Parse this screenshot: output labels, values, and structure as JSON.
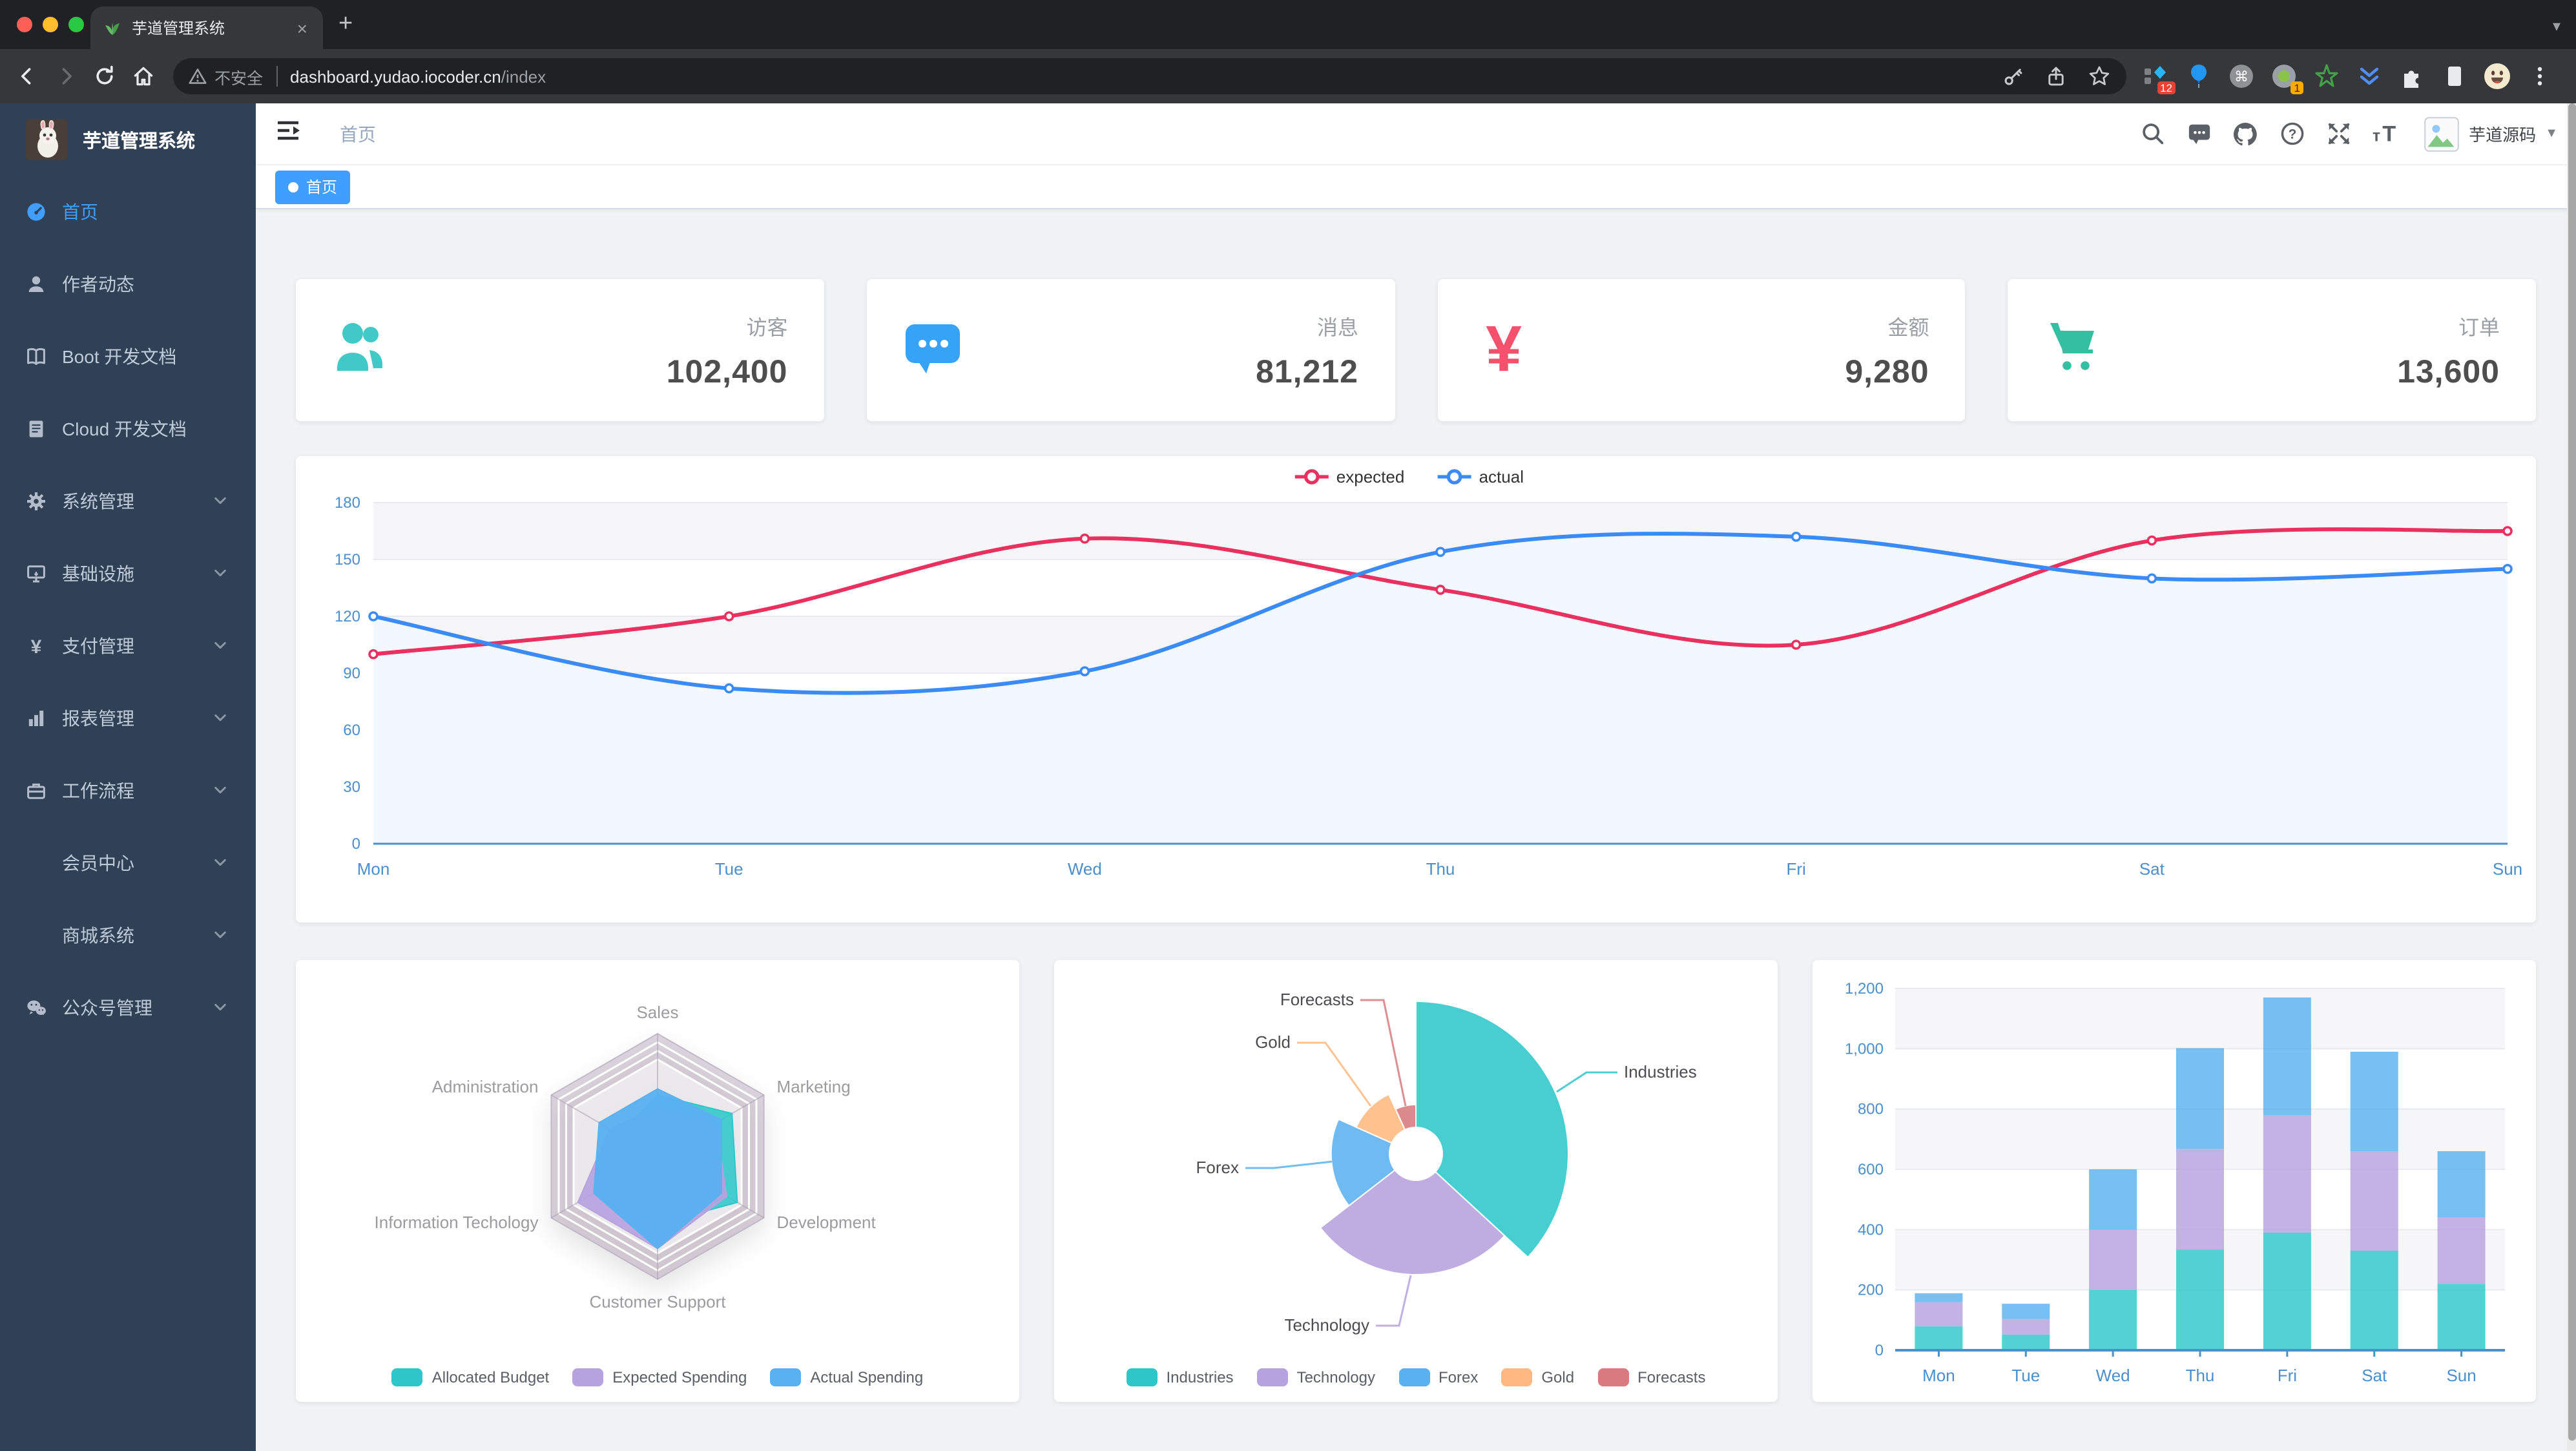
{
  "browser": {
    "traffic_lights": [
      "#ff5f57",
      "#febc2e",
      "#28c840"
    ],
    "tab": {
      "title": "芋道管理系统",
      "close_label": "×"
    },
    "new_tab_label": "+",
    "address": {
      "warning_label": "不安全",
      "host": "dashboard.yudao.iocoder.cn",
      "path": "/index"
    },
    "extension_badges": {
      "first": "12",
      "second": "1"
    }
  },
  "sidebar": {
    "logo_title": "芋道管理系统",
    "items": [
      {
        "label": "首页",
        "icon": "dashboard",
        "active": true,
        "expandable": false
      },
      {
        "label": "作者动态",
        "icon": "person",
        "expandable": false
      },
      {
        "label": "Boot 开发文档",
        "icon": "book",
        "expandable": false
      },
      {
        "label": "Cloud 开发文档",
        "icon": "doc",
        "expandable": false
      },
      {
        "label": "系统管理",
        "icon": "gear",
        "expandable": true
      },
      {
        "label": "基础设施",
        "icon": "monitor",
        "expandable": true
      },
      {
        "label": "支付管理",
        "icon": "yen",
        "expandable": true
      },
      {
        "label": "报表管理",
        "icon": "chart",
        "expandable": true
      },
      {
        "label": "工作流程",
        "icon": "briefcase",
        "expandable": true
      },
      {
        "label": "会员中心",
        "icon": null,
        "expandable": true
      },
      {
        "label": "商城系统",
        "icon": null,
        "expandable": true
      },
      {
        "label": "公众号管理",
        "icon": "wechat",
        "expandable": true
      }
    ]
  },
  "navbar": {
    "breadcrumb": "首页",
    "user_name": "芋道源码"
  },
  "tags_view": {
    "active_tag": "首页"
  },
  "stat_cards": [
    {
      "label": "访客",
      "value": "102,400",
      "icon": "people",
      "color": "#40c9c6"
    },
    {
      "label": "消息",
      "value": "81,212",
      "icon": "message",
      "color": "#36a3f7"
    },
    {
      "label": "金额",
      "value": "9,280",
      "icon": "money",
      "color": "#f4516c"
    },
    {
      "label": "订单",
      "value": "13,600",
      "icon": "shopping",
      "color": "#34bfa3"
    }
  ],
  "chart_data": [
    {
      "id": "weekly-line",
      "type": "line",
      "x": [
        "Mon",
        "Tue",
        "Wed",
        "Thu",
        "Fri",
        "Sat",
        "Sun"
      ],
      "ylim": [
        0,
        180
      ],
      "ytick_step": 30,
      "grid": true,
      "legend_position": "top",
      "series": [
        {
          "name": "expected",
          "color": "#e9305f",
          "values": [
            100,
            120,
            161,
            134,
            105,
            160,
            165
          ]
        },
        {
          "name": "actual",
          "color": "#3a8bf8",
          "area_color": "#f3f8ff",
          "values": [
            120,
            82,
            91,
            154,
            162,
            140,
            145
          ]
        }
      ]
    },
    {
      "id": "spending-radar",
      "type": "radar",
      "legend_position": "bottom",
      "indicators": [
        {
          "name": "Sales",
          "max": 10000
        },
        {
          "name": "Administration",
          "max": 20000
        },
        {
          "name": "Information Techology",
          "max": 20000
        },
        {
          "name": "Customer Support",
          "max": 20000
        },
        {
          "name": "Development",
          "max": 20000
        },
        {
          "name": "Marketing",
          "max": 20000
        }
      ],
      "series": [
        {
          "name": "Allocated Budget",
          "color": "#2ec7c9",
          "values": [
            5000,
            7000,
            12000,
            11000,
            15000,
            14000
          ]
        },
        {
          "name": "Expected Spending",
          "color": "#b6a2de",
          "values": [
            4000,
            9000,
            15000,
            15000,
            13000,
            11000
          ]
        },
        {
          "name": "Actual Spending",
          "color": "#5ab1ef",
          "values": [
            5500,
            11000,
            12000,
            15000,
            12000,
            12000
          ]
        }
      ]
    },
    {
      "id": "channels-pie",
      "type": "pie",
      "rose": true,
      "legend_position": "bottom",
      "items": [
        {
          "name": "Industries",
          "value": 320,
          "color": "#2ec7c9"
        },
        {
          "name": "Technology",
          "value": 240,
          "color": "#b6a2de"
        },
        {
          "name": "Forex",
          "value": 149,
          "color": "#5ab1ef"
        },
        {
          "name": "Gold",
          "value": 100,
          "color": "#ffb980"
        },
        {
          "name": "Forecasts",
          "value": 59,
          "color": "#d87a80"
        }
      ]
    },
    {
      "id": "weekly-bar",
      "type": "bar",
      "stacked": true,
      "categories": [
        "Mon",
        "Tue",
        "Wed",
        "Thu",
        "Fri",
        "Sat",
        "Sun"
      ],
      "ylim": [
        0,
        1200
      ],
      "ytick_step": 200,
      "series": [
        {
          "color": "#2ec7c9",
          "values": [
            79,
            52,
            200,
            334,
            390,
            330,
            220
          ]
        },
        {
          "color": "#b6a2de",
          "values": [
            80,
            52,
            200,
            334,
            390,
            330,
            220
          ]
        },
        {
          "color": "#5ab1ef",
          "values": [
            30,
            50,
            200,
            334,
            390,
            330,
            220
          ]
        }
      ]
    }
  ]
}
